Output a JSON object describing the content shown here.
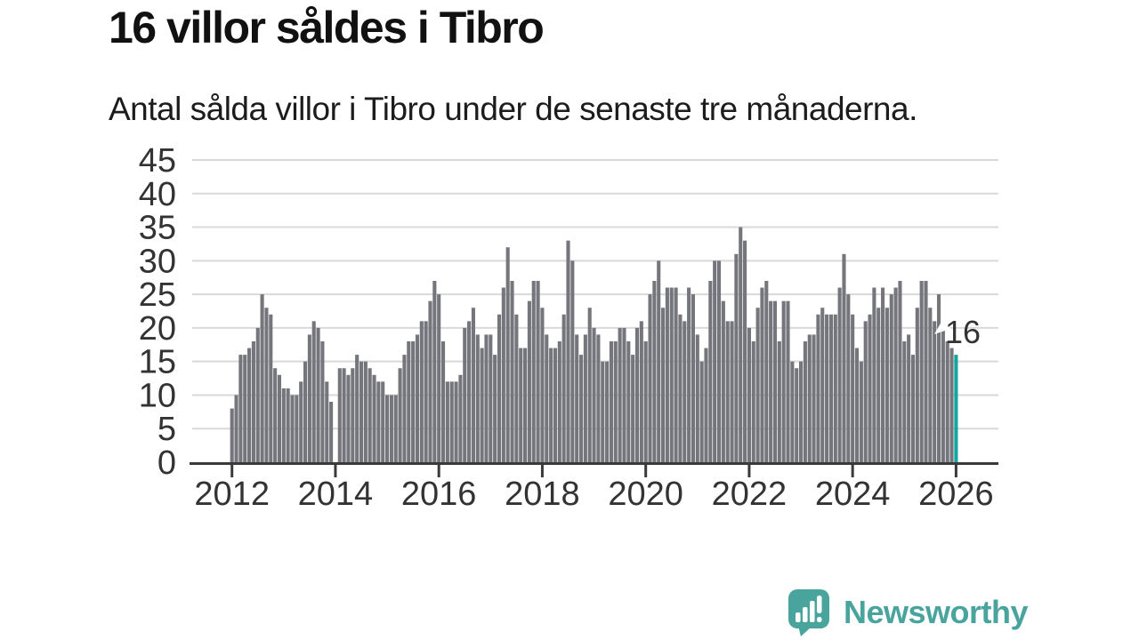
{
  "title": "16 villor såldes i Tibro",
  "subtitle": "Antal sålda villor i Tibro under de senaste tre månaderna.",
  "annotation": {
    "label": "16"
  },
  "logo": {
    "text": "Newsworthy"
  },
  "colors": {
    "bar": "#75757c",
    "highlight": "#12a6a1",
    "grid": "#d9d9d9",
    "axis": "#3a3a3a",
    "tick_text": "#333333",
    "title_text": "#111111",
    "logo_teal": "#4aa49e"
  },
  "chart_data": {
    "type": "bar",
    "title": "16 villor såldes i Tibro",
    "subtitle": "Antal sålda villor i Tibro under de senaste tre månaderna.",
    "x_start": "2012-01",
    "x_end": "2026-01",
    "x_tick_labels": [
      "2012",
      "2014",
      "2016",
      "2018",
      "2020",
      "2022",
      "2024",
      "2026"
    ],
    "y_tick_values": [
      0,
      5,
      10,
      15,
      20,
      25,
      30,
      35,
      40,
      45
    ],
    "ylim": [
      0,
      45
    ],
    "grid": true,
    "highlight_last": true,
    "last_value_label": "16",
    "values": [
      8,
      10,
      16,
      16,
      17,
      18,
      20,
      25,
      23,
      22,
      14,
      13,
      11,
      11,
      10,
      10,
      12,
      15,
      19,
      21,
      20,
      18,
      12,
      9,
      0,
      14,
      14,
      13,
      14,
      16,
      15,
      15,
      14,
      13,
      12,
      12,
      10,
      10,
      10,
      14,
      16,
      18,
      18,
      19,
      21,
      21,
      24,
      27,
      25,
      18,
      12,
      12,
      12,
      13,
      20,
      21,
      23,
      19,
      17,
      19,
      19,
      16,
      22,
      26,
      32,
      27,
      22,
      17,
      17,
      24,
      27,
      27,
      23,
      19,
      17,
      17,
      18,
      22,
      33,
      30,
      19,
      16,
      19,
      23,
      20,
      19,
      15,
      15,
      18,
      18,
      20,
      20,
      18,
      16,
      20,
      21,
      18,
      25,
      27,
      30,
      23,
      26,
      26,
      26,
      22,
      21,
      26,
      25,
      19,
      15,
      17,
      27,
      30,
      30,
      24,
      21,
      21,
      31,
      35,
      33,
      20,
      18,
      23,
      26,
      27,
      24,
      24,
      18,
      24,
      24,
      15,
      14,
      15,
      18,
      19,
      19,
      22,
      23,
      22,
      22,
      22,
      26,
      31,
      25,
      22,
      17,
      15,
      21,
      22,
      26,
      23,
      26,
      23,
      25,
      26,
      27,
      18,
      19,
      16,
      23,
      27,
      27,
      23,
      21,
      25,
      20,
      18,
      17,
      16
    ]
  }
}
